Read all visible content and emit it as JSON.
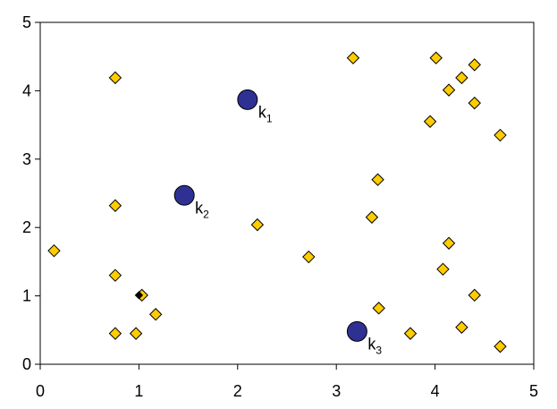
{
  "chart_data": {
    "type": "scatter",
    "xlim": [
      0,
      5
    ],
    "ylim": [
      0,
      5
    ],
    "xticks": [
      0,
      1,
      2,
      3,
      4,
      5
    ],
    "yticks": [
      0,
      1,
      2,
      3,
      4,
      5
    ],
    "series": [
      {
        "color": "#ffcc00",
        "marker": "diamond",
        "x": [
          0.76,
          0.76,
          0.14,
          0.76,
          1.03,
          1.17,
          0.76,
          0.97,
          2.2,
          2.72,
          3.17,
          3.42,
          3.36,
          3.43,
          3.75,
          4.01,
          4.4,
          4.27,
          4.14,
          4.4,
          3.95,
          4.66,
          4.14,
          4.08,
          4.4,
          4.27,
          4.66
        ],
        "values": [
          4.19,
          2.32,
          1.66,
          1.3,
          1.01,
          0.73,
          0.45,
          0.45,
          2.04,
          1.57,
          4.48,
          2.7,
          2.15,
          0.82,
          0.45,
          4.48,
          4.38,
          4.19,
          4.01,
          3.82,
          3.55,
          3.35,
          1.77,
          1.39,
          1.01,
          0.54,
          0.26
        ]
      },
      {
        "color": "#000000",
        "marker": "diamond-small",
        "x": [
          1.0
        ],
        "values": [
          1.01
        ]
      },
      {
        "color": "#2e3192",
        "marker": "circle",
        "x": [
          2.1,
          1.46,
          3.21
        ],
        "values": [
          3.87,
          2.47,
          0.48
        ],
        "point_labels": [
          {
            "text": "k",
            "subscript": "1"
          },
          {
            "text": "k",
            "subscript": "2"
          },
          {
            "text": "k",
            "subscript": "3"
          }
        ]
      }
    ]
  }
}
